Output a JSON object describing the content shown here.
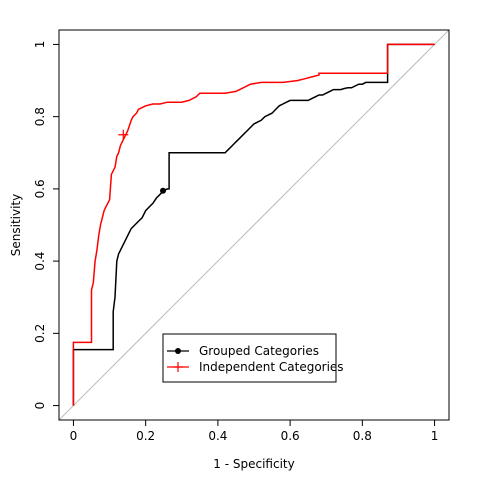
{
  "chart_data": {
    "type": "line",
    "title": "",
    "xlabel": "1 - Specificity",
    "ylabel": "Sensitivity",
    "xlim": [
      -0.04,
      1.04
    ],
    "ylim": [
      -0.04,
      1.04
    ],
    "xticks": [
      0,
      0.2,
      0.4,
      0.6,
      0.8,
      1
    ],
    "yticks": [
      0,
      0.2,
      0.4,
      0.6,
      0.8,
      1
    ],
    "xtick_labels": [
      "0",
      "0.2",
      "0.4",
      "0.6",
      "0.8",
      "1"
    ],
    "ytick_labels": [
      "0",
      "0.2",
      "0.4",
      "0.6",
      "0.8",
      "1"
    ],
    "grid": false,
    "diagonal_reference": true,
    "legend_position": "bottom-center",
    "series": [
      {
        "name": "Grouped Categories",
        "color": "#000000",
        "marker": "filled-circle",
        "marker_at": [
          0.248,
          0.595
        ],
        "x": [
          0,
          0,
          0.11,
          0.11,
          0.115,
          0.12,
          0.125,
          0.13,
          0.14,
          0.15,
          0.16,
          0.17,
          0.18,
          0.19,
          0.2,
          0.21,
          0.22,
          0.23,
          0.24,
          0.25,
          0.26,
          0.265,
          0.265,
          0.42,
          0.43,
          0.44,
          0.45,
          0.46,
          0.47,
          0.48,
          0.49,
          0.5,
          0.51,
          0.52,
          0.53,
          0.54,
          0.55,
          0.56,
          0.57,
          0.58,
          0.59,
          0.6,
          0.65,
          0.66,
          0.67,
          0.68,
          0.69,
          0.7,
          0.71,
          0.72,
          0.73,
          0.74,
          0.75,
          0.76,
          0.77,
          0.78,
          0.79,
          0.8,
          0.81,
          0.82,
          0.83,
          0.87,
          0.87,
          1
        ],
        "y": [
          0,
          0.155,
          0.155,
          0.26,
          0.3,
          0.4,
          0.42,
          0.43,
          0.45,
          0.47,
          0.49,
          0.5,
          0.51,
          0.52,
          0.54,
          0.55,
          0.56,
          0.575,
          0.585,
          0.595,
          0.6,
          0.6,
          0.7,
          0.7,
          0.71,
          0.72,
          0.73,
          0.74,
          0.75,
          0.76,
          0.77,
          0.78,
          0.785,
          0.79,
          0.8,
          0.805,
          0.81,
          0.82,
          0.83,
          0.835,
          0.84,
          0.845,
          0.845,
          0.85,
          0.855,
          0.86,
          0.86,
          0.865,
          0.87,
          0.875,
          0.875,
          0.875,
          0.878,
          0.88,
          0.88,
          0.885,
          0.89,
          0.89,
          0.895,
          0.895,
          0.895,
          0.895,
          1,
          1
        ]
      },
      {
        "name": "Independent Categories",
        "color": "#ff0000",
        "marker": "plus",
        "marker_at": [
          0.138,
          0.75
        ],
        "x": [
          0,
          0,
          0.05,
          0.05,
          0.055,
          0.06,
          0.065,
          0.07,
          0.075,
          0.08,
          0.085,
          0.09,
          0.095,
          0.1,
          0.105,
          0.11,
          0.115,
          0.12,
          0.125,
          0.13,
          0.135,
          0.14,
          0.145,
          0.15,
          0.155,
          0.16,
          0.165,
          0.17,
          0.175,
          0.18,
          0.19,
          0.2,
          0.22,
          0.24,
          0.26,
          0.28,
          0.3,
          0.32,
          0.34,
          0.35,
          0.38,
          0.42,
          0.45,
          0.47,
          0.49,
          0.52,
          0.55,
          0.58,
          0.62,
          0.64,
          0.66,
          0.68,
          0.68,
          0.87,
          0.87,
          1
        ],
        "y": [
          0,
          0.175,
          0.175,
          0.32,
          0.34,
          0.4,
          0.43,
          0.47,
          0.5,
          0.52,
          0.54,
          0.55,
          0.56,
          0.57,
          0.64,
          0.65,
          0.66,
          0.69,
          0.7,
          0.72,
          0.73,
          0.74,
          0.75,
          0.76,
          0.775,
          0.79,
          0.8,
          0.805,
          0.81,
          0.82,
          0.825,
          0.83,
          0.835,
          0.835,
          0.84,
          0.84,
          0.84,
          0.845,
          0.855,
          0.865,
          0.865,
          0.865,
          0.87,
          0.88,
          0.89,
          0.895,
          0.895,
          0.895,
          0.9,
          0.905,
          0.91,
          0.915,
          0.92,
          0.92,
          1,
          1
        ]
      }
    ]
  }
}
